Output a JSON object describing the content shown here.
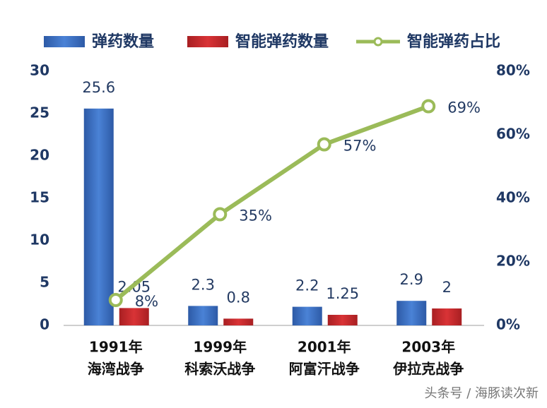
{
  "chart_data": {
    "type": "bar-line",
    "categories": [
      [
        "1991年",
        "海湾战争"
      ],
      [
        "1999年",
        "科索沃战争"
      ],
      [
        "2001年",
        "阿富汗战争"
      ],
      [
        "2003年",
        "伊拉克战争"
      ]
    ],
    "series": [
      {
        "name": "弹药数量",
        "type": "bar",
        "color": "#3b6fc2",
        "values": [
          25.6,
          2.3,
          2.2,
          2.9
        ]
      },
      {
        "name": "智能弹药数量",
        "type": "bar",
        "color": "#c9282b",
        "values": [
          2.05,
          0.8,
          1.25,
          2
        ]
      },
      {
        "name": "智能弹药占比",
        "type": "line",
        "axis": "y2",
        "color": "#9bbb59",
        "values": [
          8,
          35,
          57,
          69
        ],
        "value_labels": [
          "8%",
          "35%",
          "57%",
          "69%"
        ]
      }
    ],
    "ylim": [
      0,
      30
    ],
    "yticks": [
      0,
      5,
      10,
      15,
      20,
      25,
      30
    ],
    "y2lim": [
      0,
      80
    ],
    "y2ticks": [
      {
        "value": 0,
        "label": "0%"
      },
      {
        "value": 20,
        "label": "20%"
      },
      {
        "value": 40,
        "label": "40%"
      },
      {
        "value": 60,
        "label": "60%"
      },
      {
        "value": 80,
        "label": "80%"
      }
    ],
    "legend": "top",
    "watermark": "头条号 / 海豚读次新"
  }
}
